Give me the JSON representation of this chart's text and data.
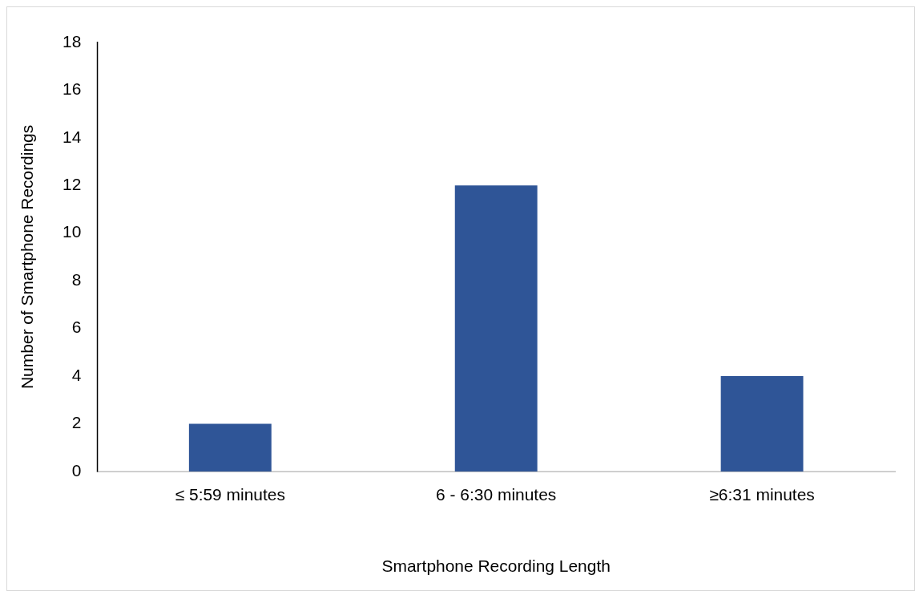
{
  "chart_data": {
    "type": "bar",
    "xlabel": "Smartphone Recording Length",
    "ylabel": "Number of Smartphone Recordings",
    "categories": [
      "≤ 5:59 minutes",
      "6 - 6:30 minutes",
      "≥6:31 minutes"
    ],
    "values": [
      2,
      12,
      4
    ],
    "color": "#2f5597",
    "ylim": [
      0,
      18
    ],
    "yticks": [
      0,
      2,
      4,
      6,
      8,
      10,
      12,
      14,
      16,
      18
    ],
    "grid": false,
    "legend": false
  }
}
